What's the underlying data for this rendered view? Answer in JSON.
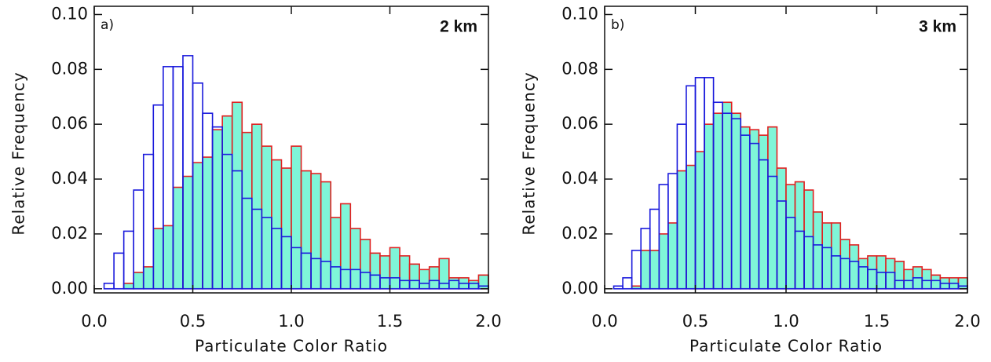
{
  "chart_data": [
    {
      "type": "histogram",
      "panel_label": "a)",
      "annotation": "2 km",
      "xlabel": "Particulate Color Ratio",
      "ylabel": "Relative Frequency",
      "bins": [
        0,
        0.05,
        0.1,
        0.15,
        0.2,
        0.25,
        0.3,
        0.35,
        0.4,
        0.45,
        0.5,
        0.55,
        0.6,
        0.65,
        0.7,
        0.75,
        0.8,
        0.85,
        0.9,
        0.95,
        1.0,
        1.05,
        1.1,
        1.15,
        1.2,
        1.25,
        1.3,
        1.35,
        1.4,
        1.45,
        1.5,
        1.55,
        1.6,
        1.65,
        1.7,
        1.75,
        1.8,
        1.85,
        1.9,
        1.95,
        2.0
      ],
      "series": [
        {
          "color": "#e02020",
          "fill": "#7ff5d8",
          "values": [
            0,
            0,
            0,
            0.002,
            0.006,
            0.008,
            0.022,
            0.023,
            0.037,
            0.041,
            0.046,
            0.048,
            0.058,
            0.063,
            0.068,
            0.057,
            0.06,
            0.052,
            0.047,
            0.044,
            0.052,
            0.043,
            0.042,
            0.039,
            0.026,
            0.031,
            0.022,
            0.018,
            0.013,
            0.012,
            0.015,
            0.012,
            0.009,
            0.007,
            0.008,
            0.011,
            0.004,
            0.004,
            0.003,
            0.005
          ]
        },
        {
          "color": "#1a1adc",
          "values": [
            0,
            0.002,
            0.013,
            0.021,
            0.036,
            0.049,
            0.067,
            0.081,
            0.081,
            0.085,
            0.075,
            0.064,
            0.059,
            0.049,
            0.043,
            0.033,
            0.029,
            0.026,
            0.022,
            0.019,
            0.015,
            0.013,
            0.011,
            0.01,
            0.008,
            0.007,
            0.007,
            0.006,
            0.005,
            0.004,
            0.004,
            0.003,
            0.003,
            0.002,
            0.003,
            0.002,
            0.003,
            0.002,
            0.002,
            0.001
          ]
        }
      ],
      "xlim": [
        0,
        2.0
      ],
      "ylim": [
        -0.0015,
        0.103
      ],
      "xticks": [
        {
          "value": 0,
          "label": "0.0"
        },
        0.5,
        {
          "value": 1.0,
          "label": "1.0"
        },
        1.5,
        {
          "value": 2.0,
          "label": "2.0"
        }
      ],
      "yticks": [
        {
          "value": 0,
          "label": "0.00"
        },
        {
          "value": 0.02,
          "label": "0.02"
        },
        {
          "value": 0.04,
          "label": "0.04"
        },
        {
          "value": 0.06,
          "label": "0.06"
        },
        {
          "value": 0.08,
          "label": "0.08"
        },
        {
          "value": 0.1,
          "label": "0.10"
        }
      ]
    },
    {
      "type": "histogram",
      "panel_label": "b)",
      "annotation": "3 km",
      "xlabel": "Particulate Color Ratio",
      "ylabel": "Relative Frequency",
      "bins": [
        0,
        0.05,
        0.1,
        0.15,
        0.2,
        0.25,
        0.3,
        0.35,
        0.4,
        0.45,
        0.5,
        0.55,
        0.6,
        0.65,
        0.7,
        0.75,
        0.8,
        0.85,
        0.9,
        0.95,
        1.0,
        1.05,
        1.1,
        1.15,
        1.2,
        1.25,
        1.3,
        1.35,
        1.4,
        1.45,
        1.5,
        1.55,
        1.6,
        1.65,
        1.7,
        1.75,
        1.8,
        1.85,
        1.9,
        1.95,
        2.0
      ],
      "series": [
        {
          "color": "#e02020",
          "fill": "#7ff5d8",
          "values": [
            0,
            0,
            0,
            0.001,
            0.014,
            0.014,
            0.02,
            0.024,
            0.043,
            0.045,
            0.05,
            0.06,
            0.064,
            0.068,
            0.064,
            0.059,
            0.058,
            0.056,
            0.059,
            0.044,
            0.038,
            0.039,
            0.036,
            0.028,
            0.024,
            0.024,
            0.018,
            0.016,
            0.011,
            0.012,
            0.012,
            0.011,
            0.01,
            0.007,
            0.008,
            0.007,
            0.005,
            0.004,
            0.004,
            0.004
          ]
        },
        {
          "color": "#1a1adc",
          "values": [
            0,
            0.001,
            0.004,
            0.014,
            0.022,
            0.029,
            0.038,
            0.042,
            0.06,
            0.074,
            0.077,
            0.077,
            0.068,
            0.064,
            0.062,
            0.056,
            0.053,
            0.047,
            0.041,
            0.032,
            0.026,
            0.021,
            0.019,
            0.016,
            0.015,
            0.012,
            0.011,
            0.01,
            0.008,
            0.007,
            0.006,
            0.006,
            0.003,
            0.003,
            0.004,
            0.003,
            0.003,
            0.002,
            0.002,
            0.001
          ]
        }
      ],
      "xlim": [
        0,
        2.0
      ],
      "ylim": [
        -0.0015,
        0.103
      ],
      "xticks": [
        {
          "value": 0,
          "label": "0.0"
        },
        0.5,
        {
          "value": 1.0,
          "label": "1.0"
        },
        1.5,
        {
          "value": 2.0,
          "label": "2.0"
        }
      ],
      "yticks": [
        {
          "value": 0,
          "label": "0.00"
        },
        {
          "value": 0.02,
          "label": "0.02"
        },
        {
          "value": 0.04,
          "label": "0.04"
        },
        {
          "value": 0.06,
          "label": "0.06"
        },
        {
          "value": 0.08,
          "label": "0.08"
        },
        {
          "value": 0.1,
          "label": "0.10"
        }
      ]
    }
  ]
}
